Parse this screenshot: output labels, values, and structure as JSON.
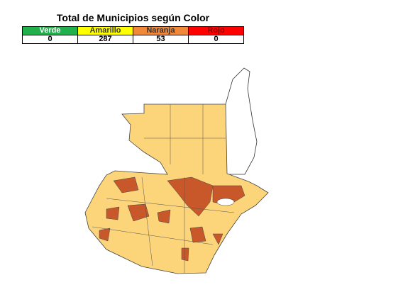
{
  "title": "Total de Municipios según Color",
  "table": {
    "header": [
      "Verde",
      "Amarillo",
      "Naranja",
      "Rojo"
    ],
    "rows": [
      [
        0,
        287,
        53,
        0
      ]
    ]
  }
}
